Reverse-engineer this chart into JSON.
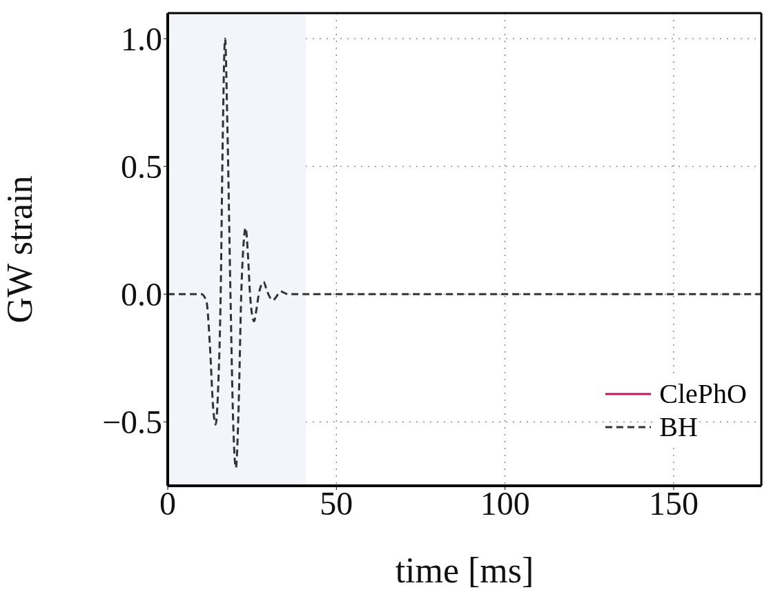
{
  "chart_data": {
    "type": "line",
    "xlabel": "time [ms]",
    "ylabel": "GW strain",
    "x": [
      0,
      10,
      11.5,
      12.5,
      13.5,
      14.2,
      15,
      15.7,
      16.3,
      17,
      17.7,
      18.6,
      19.4,
      20.2,
      21,
      21.8,
      22.5,
      23.1,
      23.8,
      24.4,
      25,
      25.6,
      26.3,
      27,
      27.7,
      28.4,
      29.5,
      31.1,
      33.6,
      35.6,
      176
    ],
    "series": [
      {
        "name": "ClePhO",
        "color": "#c2185b",
        "line_style": "solid",
        "values": [
          null,
          null,
          null,
          null,
          null,
          null,
          null,
          null,
          null,
          null,
          null,
          null,
          null,
          null,
          null,
          null,
          null,
          null,
          null,
          null,
          null,
          null,
          null,
          null,
          null,
          null,
          null,
          null,
          null,
          null,
          null
        ]
      },
      {
        "name": "BH",
        "color": "#333333",
        "line_style": "dashed",
        "values": [
          0,
          0,
          -0.03,
          -0.2,
          -0.45,
          -0.51,
          -0.35,
          0,
          0.6,
          1.0,
          0.65,
          0,
          -0.5,
          -0.68,
          -0.45,
          0,
          0.2,
          0.26,
          0.15,
          0,
          -0.08,
          -0.106,
          -0.06,
          0,
          0.035,
          0.048,
          0.01,
          -0.024,
          0.01,
          0,
          0
        ]
      }
    ],
    "xlim": [
      0,
      176
    ],
    "xticks": [
      0,
      50,
      100,
      150
    ],
    "ylim": [
      -0.75,
      1.1
    ],
    "yticks": [
      {
        "value": -0.5,
        "label": "−0.5"
      },
      {
        "value": 0,
        "label": "0.0"
      },
      {
        "value": 0.5,
        "label": "0.5"
      },
      {
        "value": 1,
        "label": "1.0"
      }
    ],
    "bands": [
      {
        "axis": "x",
        "from": 0,
        "to": 41,
        "color": "#f4f4fb"
      }
    ],
    "grid": true,
    "legend": "bottom right"
  }
}
